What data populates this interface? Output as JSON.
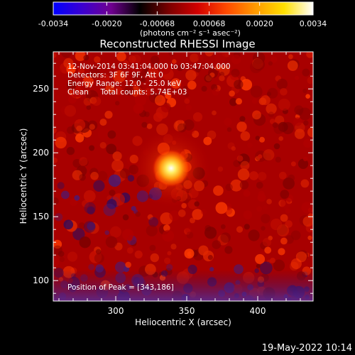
{
  "colorbar": {
    "tick_labels": [
      "-0.0034",
      "-0.0020",
      "-0.00068",
      "0.00068",
      "0.0020",
      "0.0034"
    ],
    "tick_values": [
      -0.0034,
      -0.002,
      -0.00068,
      0.00068,
      0.002,
      0.0034
    ],
    "range": [
      -0.0034,
      0.0034
    ],
    "units_label": "(photons cm⁻² s⁻¹ asec⁻²)",
    "gradient_colors": [
      "#0000ff",
      "#3b00d0",
      "#700090",
      "#000000",
      "#7a0000",
      "#d20000",
      "#ff4a00",
      "#ff9a00",
      "#ffe000",
      "#ffffff"
    ]
  },
  "plot": {
    "title": "Reconstructed RHESSI Image",
    "xlabel": "Heliocentric X (arcsec)",
    "ylabel": "Heliocentric Y (arcsec)",
    "xlim": [
      256,
      439
    ],
    "ylim": [
      84,
      279
    ],
    "x_ticks": [
      300,
      350,
      400
    ],
    "y_ticks": [
      100,
      150,
      200,
      250
    ],
    "x_tick_labels": [
      "300",
      "350",
      "400"
    ],
    "y_tick_labels": [
      "100",
      "150",
      "200",
      "250"
    ],
    "info_lines": [
      "12-Nov-2014 03:41:04.000 to 03:47:04.000",
      "Detectors: 3F 6F 9F, Att 0",
      "Energy Range: 12.0 - 25.0 keV",
      "Clean     Total counts: 5.74E+03"
    ],
    "peak_label": "Position of Peak = [343,186]",
    "peak_position": [
      343,
      186
    ]
  },
  "footer": {
    "date": "19-May-2022 10:14"
  }
}
